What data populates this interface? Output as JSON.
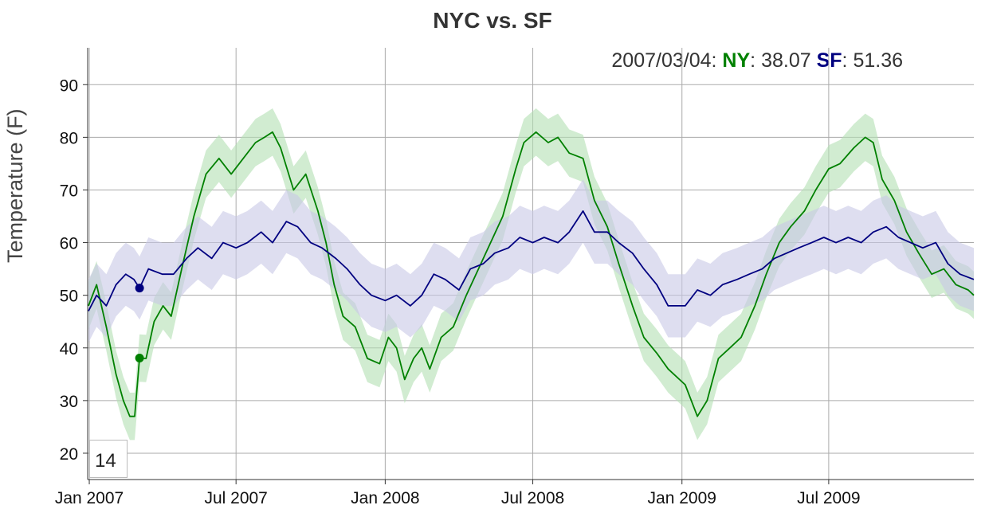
{
  "chart_data": {
    "type": "line",
    "title": "NYC vs. SF",
    "xlabel": "",
    "ylabel": "Temperature (F)",
    "ylim": [
      15,
      97
    ],
    "xlim": [
      "2006-12-30",
      "2009-12-27"
    ],
    "yticks": [
      20,
      30,
      40,
      50,
      60,
      70,
      80,
      90
    ],
    "xticks": [
      "Jan 2007",
      "Jul 2007",
      "Jan 2008",
      "Jul 2008",
      "Jan 2009",
      "Jul 2009"
    ],
    "grid": true,
    "error_bands": true,
    "roll_period": "14",
    "highlight": {
      "date": "2007/03/04",
      "values": [
        {
          "name": "NY",
          "value": "38.07",
          "color": "#008000"
        },
        {
          "name": "SF",
          "value": "51.36",
          "color": "#000080"
        }
      ]
    },
    "series": [
      {
        "name": "NY",
        "color": "#008000",
        "band_color": "#b3dfb3",
        "band_width": 4.5,
        "points": [
          [
            "2006-12-31",
            48
          ],
          [
            "2007-01-10",
            52
          ],
          [
            "2007-01-22",
            44
          ],
          [
            "2007-02-03",
            35
          ],
          [
            "2007-02-12",
            30
          ],
          [
            "2007-02-20",
            27
          ],
          [
            "2007-02-26",
            27
          ],
          [
            "2007-03-04",
            38.07
          ],
          [
            "2007-03-12",
            38
          ],
          [
            "2007-03-22",
            45
          ],
          [
            "2007-04-02",
            48
          ],
          [
            "2007-04-12",
            46
          ],
          [
            "2007-04-25",
            55
          ],
          [
            "2007-05-10",
            65
          ],
          [
            "2007-05-25",
            73
          ],
          [
            "2007-06-10",
            76
          ],
          [
            "2007-06-25",
            73
          ],
          [
            "2007-07-10",
            76
          ],
          [
            "2007-07-25",
            79
          ],
          [
            "2007-08-05",
            80
          ],
          [
            "2007-08-15",
            81
          ],
          [
            "2007-08-25",
            78
          ],
          [
            "2007-09-10",
            70
          ],
          [
            "2007-09-25",
            73
          ],
          [
            "2007-10-10",
            66
          ],
          [
            "2007-10-20",
            60
          ],
          [
            "2007-10-30",
            52
          ],
          [
            "2007-11-10",
            46
          ],
          [
            "2007-11-25",
            44
          ],
          [
            "2007-12-10",
            38
          ],
          [
            "2007-12-25",
            37
          ],
          [
            "2008-01-05",
            42
          ],
          [
            "2008-01-15",
            40
          ],
          [
            "2008-01-25",
            34
          ],
          [
            "2008-02-05",
            38
          ],
          [
            "2008-02-15",
            40
          ],
          [
            "2008-02-25",
            36
          ],
          [
            "2008-03-10",
            42
          ],
          [
            "2008-03-25",
            44
          ],
          [
            "2008-04-10",
            50
          ],
          [
            "2008-04-25",
            55
          ],
          [
            "2008-05-10",
            60
          ],
          [
            "2008-05-25",
            65
          ],
          [
            "2008-06-10",
            74
          ],
          [
            "2008-06-20",
            79
          ],
          [
            "2008-07-05",
            81
          ],
          [
            "2008-07-20",
            79
          ],
          [
            "2008-08-01",
            80
          ],
          [
            "2008-08-15",
            77
          ],
          [
            "2008-09-01",
            76
          ],
          [
            "2008-09-15",
            68
          ],
          [
            "2008-10-01",
            63
          ],
          [
            "2008-10-15",
            56
          ],
          [
            "2008-11-01",
            48
          ],
          [
            "2008-11-15",
            42
          ],
          [
            "2008-12-01",
            39
          ],
          [
            "2008-12-15",
            36
          ],
          [
            "2009-01-05",
            33
          ],
          [
            "2009-01-20",
            27
          ],
          [
            "2009-02-01",
            30
          ],
          [
            "2009-02-15",
            38
          ],
          [
            "2009-03-01",
            40
          ],
          [
            "2009-03-15",
            42
          ],
          [
            "2009-04-01",
            48
          ],
          [
            "2009-04-15",
            54
          ],
          [
            "2009-05-01",
            60
          ],
          [
            "2009-05-15",
            63
          ],
          [
            "2009-06-01",
            66
          ],
          [
            "2009-06-15",
            70
          ],
          [
            "2009-07-01",
            74
          ],
          [
            "2009-07-15",
            75
          ],
          [
            "2009-08-01",
            78
          ],
          [
            "2009-08-15",
            80
          ],
          [
            "2009-08-25",
            79
          ],
          [
            "2009-09-05",
            72
          ],
          [
            "2009-09-20",
            68
          ],
          [
            "2009-10-05",
            62
          ],
          [
            "2009-10-20",
            58
          ],
          [
            "2009-11-05",
            54
          ],
          [
            "2009-11-20",
            55
          ],
          [
            "2009-12-05",
            52
          ],
          [
            "2009-12-20",
            51
          ],
          [
            "2009-12-27",
            50
          ]
        ]
      },
      {
        "name": "SF",
        "color": "#000080",
        "band_color": "#c8c8e6",
        "band_width": 6,
        "points": [
          [
            "2006-12-31",
            47
          ],
          [
            "2007-01-10",
            50
          ],
          [
            "2007-01-22",
            48
          ],
          [
            "2007-02-03",
            52
          ],
          [
            "2007-02-15",
            54
          ],
          [
            "2007-02-25",
            53
          ],
          [
            "2007-03-04",
            51.36
          ],
          [
            "2007-03-15",
            55
          ],
          [
            "2007-04-01",
            54
          ],
          [
            "2007-04-15",
            54
          ],
          [
            "2007-05-01",
            57
          ],
          [
            "2007-05-15",
            59
          ],
          [
            "2007-06-01",
            57
          ],
          [
            "2007-06-15",
            60
          ],
          [
            "2007-07-01",
            59
          ],
          [
            "2007-07-15",
            60
          ],
          [
            "2007-08-01",
            62
          ],
          [
            "2007-08-15",
            60
          ],
          [
            "2007-09-01",
            64
          ],
          [
            "2007-09-15",
            63
          ],
          [
            "2007-10-01",
            60
          ],
          [
            "2007-10-15",
            59
          ],
          [
            "2007-11-01",
            57
          ],
          [
            "2007-11-15",
            55
          ],
          [
            "2007-12-01",
            52
          ],
          [
            "2007-12-15",
            50
          ],
          [
            "2008-01-01",
            49
          ],
          [
            "2008-01-15",
            50
          ],
          [
            "2008-02-01",
            48
          ],
          [
            "2008-02-15",
            50
          ],
          [
            "2008-03-01",
            54
          ],
          [
            "2008-03-15",
            53
          ],
          [
            "2008-04-01",
            51
          ],
          [
            "2008-04-15",
            55
          ],
          [
            "2008-05-01",
            56
          ],
          [
            "2008-05-15",
            58
          ],
          [
            "2008-06-01",
            59
          ],
          [
            "2008-06-15",
            61
          ],
          [
            "2008-07-01",
            60
          ],
          [
            "2008-07-15",
            61
          ],
          [
            "2008-08-01",
            60
          ],
          [
            "2008-08-15",
            62
          ],
          [
            "2008-09-01",
            66
          ],
          [
            "2008-09-15",
            62
          ],
          [
            "2008-10-01",
            62
          ],
          [
            "2008-10-15",
            60
          ],
          [
            "2008-11-01",
            58
          ],
          [
            "2008-11-15",
            55
          ],
          [
            "2008-12-01",
            52
          ],
          [
            "2008-12-15",
            48
          ],
          [
            "2009-01-05",
            48
          ],
          [
            "2009-01-20",
            51
          ],
          [
            "2009-02-05",
            50
          ],
          [
            "2009-02-20",
            52
          ],
          [
            "2009-03-10",
            53
          ],
          [
            "2009-03-25",
            54
          ],
          [
            "2009-04-10",
            55
          ],
          [
            "2009-04-25",
            57
          ],
          [
            "2009-05-10",
            58
          ],
          [
            "2009-05-25",
            59
          ],
          [
            "2009-06-10",
            60
          ],
          [
            "2009-06-25",
            61
          ],
          [
            "2009-07-10",
            60
          ],
          [
            "2009-07-25",
            61
          ],
          [
            "2009-08-10",
            60
          ],
          [
            "2009-08-25",
            62
          ],
          [
            "2009-09-10",
            63
          ],
          [
            "2009-09-25",
            61
          ],
          [
            "2009-10-10",
            60
          ],
          [
            "2009-10-25",
            59
          ],
          [
            "2009-11-10",
            60
          ],
          [
            "2009-11-25",
            56
          ],
          [
            "2009-12-10",
            54
          ],
          [
            "2009-12-27",
            53
          ]
        ]
      }
    ]
  }
}
